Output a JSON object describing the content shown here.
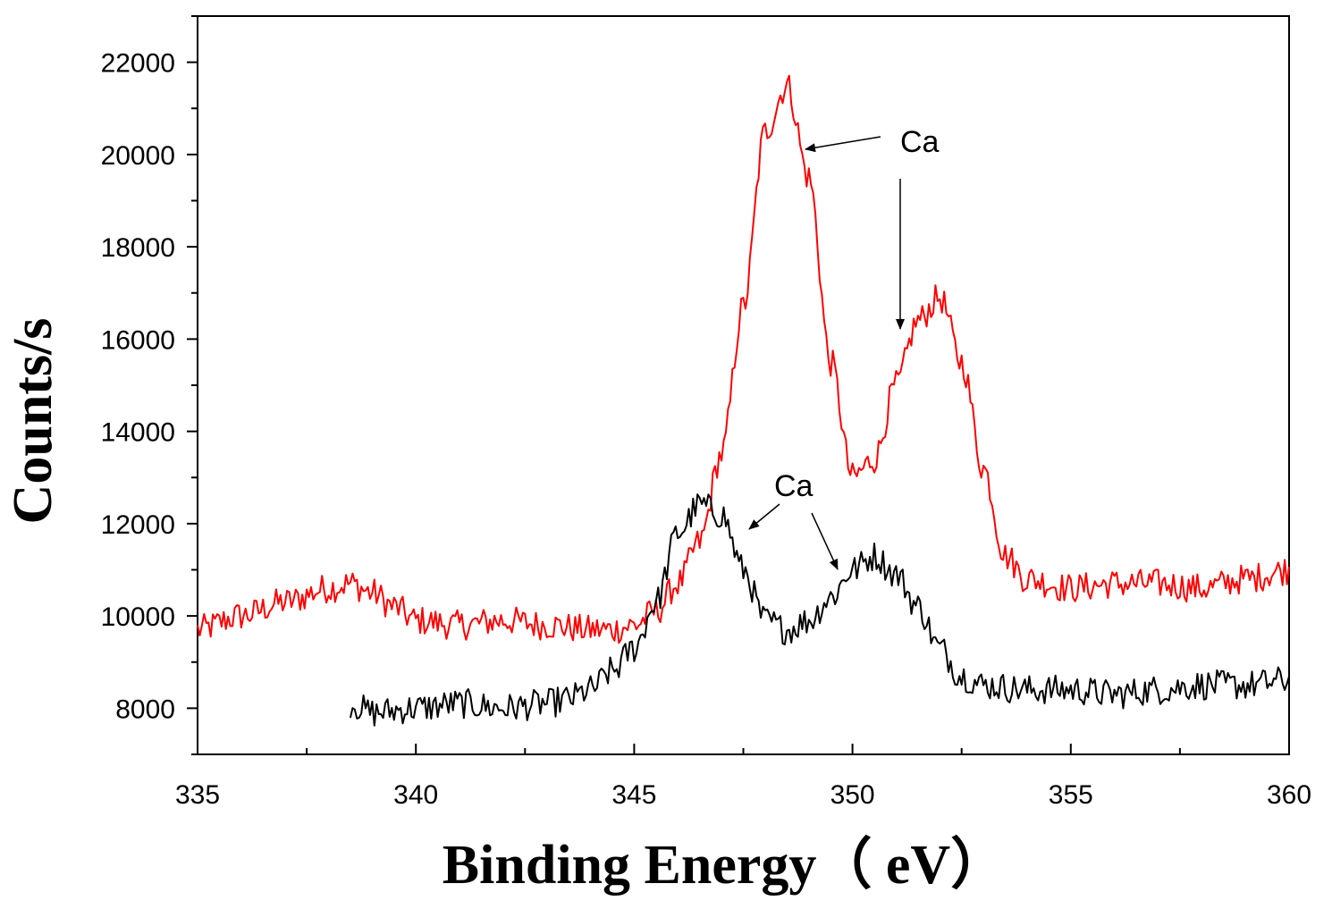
{
  "chart_data": {
    "type": "line",
    "title": "",
    "xlabel": "Binding Energy（  eV）",
    "ylabel": "Counts/s",
    "xlim": [
      335,
      360
    ],
    "ylim": [
      7000,
      23000
    ],
    "xticks": [
      335,
      340,
      345,
      350,
      355,
      360
    ],
    "yticks": [
      8000,
      10000,
      12000,
      14000,
      16000,
      18000,
      20000,
      22000
    ],
    "grid": false,
    "series": [
      {
        "name": "red",
        "color": "#ff0000",
        "x": [
          335,
          336,
          337,
          338,
          338.5,
          339,
          339.5,
          340,
          341,
          342,
          343,
          344,
          344.5,
          345,
          345.5,
          346,
          346.5,
          347,
          347.5,
          348,
          348.5,
          349,
          349.5,
          350,
          350.5,
          351,
          351.5,
          352,
          352.5,
          353,
          353.5,
          354,
          355,
          356,
          357,
          358,
          359,
          360
        ],
        "values": [
          9700,
          10000,
          10300,
          10600,
          10700,
          10500,
          10200,
          9900,
          9800,
          9900,
          9800,
          9700,
          9700,
          9800,
          10100,
          10700,
          11600,
          13500,
          16700,
          20500,
          21500,
          19500,
          15500,
          13000,
          13400,
          15000,
          16400,
          16900,
          15500,
          13200,
          11300,
          10800,
          10600,
          10700,
          10700,
          10600,
          10800,
          11000
        ]
      },
      {
        "name": "black",
        "color": "#000000",
        "x": [
          338.5,
          339,
          340,
          341,
          342,
          343,
          343.5,
          344,
          344.5,
          345,
          345.5,
          346,
          346.5,
          347,
          347.5,
          348,
          348.5,
          349,
          349.5,
          350,
          350.5,
          351,
          351.5,
          352,
          352.5,
          353,
          354,
          355,
          356,
          357,
          358,
          359,
          360
        ],
        "values": [
          8100,
          7900,
          8000,
          8100,
          8000,
          8100,
          8200,
          8400,
          8800,
          9300,
          10300,
          11800,
          12400,
          12200,
          11000,
          9900,
          9700,
          9900,
          10400,
          11000,
          11300,
          10900,
          10200,
          9300,
          8700,
          8500,
          8400,
          8400,
          8300,
          8400,
          8500,
          8500,
          8600
        ]
      }
    ],
    "annotations": [
      {
        "text": "Ca",
        "target_series": "red",
        "target_x": 348.9,
        "target_y": 20100
      },
      {
        "text": "Ca",
        "target_series": "red",
        "target_x": 351.1,
        "target_y": 16300
      },
      {
        "text": "Ca",
        "target_series": "black",
        "target_x": 347.6,
        "target_y": 11900
      },
      {
        "text": "Ca",
        "target_series": "black",
        "target_x": 349.7,
        "target_y": 10900
      }
    ]
  }
}
